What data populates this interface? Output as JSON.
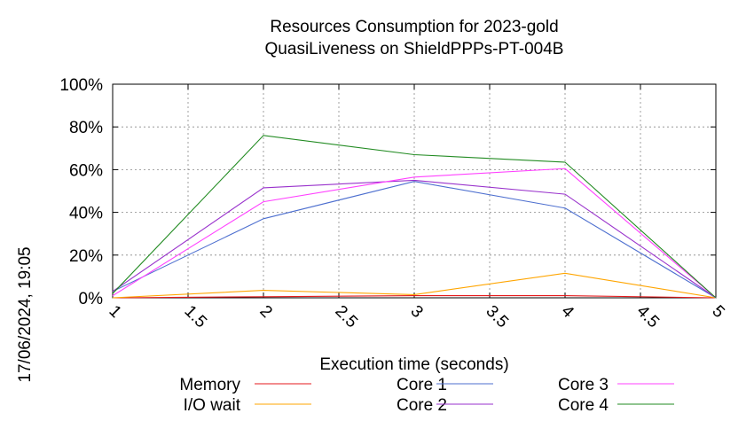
{
  "chart_data": {
    "type": "line",
    "title_line1": "Resources Consumption for 2023-gold",
    "title_line2": "QuasiLiveness on ShieldPPPs-PT-004B",
    "xlabel": "Execution time (seconds)",
    "ylabel": "",
    "timestamp": "17/06/2024, 19:05",
    "xlim": [
      1,
      5
    ],
    "ylim": [
      0,
      100
    ],
    "x_ticks": [
      1,
      1.5,
      2,
      2.5,
      3,
      3.5,
      4,
      4.5,
      5
    ],
    "x_tick_labels": [
      "1",
      "1.5",
      "2",
      "2.5",
      "3",
      "3.5",
      "4",
      "4.5",
      "5"
    ],
    "y_ticks": [
      0,
      20,
      40,
      60,
      80,
      100
    ],
    "y_tick_labels": [
      "0%",
      "20%",
      "40%",
      "60%",
      "80%",
      "100%"
    ],
    "grid": true,
    "legend_position": "bottom",
    "x": [
      1,
      2,
      3,
      4,
      5
    ],
    "series": [
      {
        "name": "Memory",
        "color": "#e41a1c",
        "values": [
          0,
          0.5,
          1,
          1,
          0
        ]
      },
      {
        "name": "I/O wait",
        "color": "#ffa500",
        "values": [
          0,
          3.5,
          1.5,
          11.5,
          0
        ]
      },
      {
        "name": "Core 1",
        "color": "#4d6fcf",
        "values": [
          3,
          37,
          54.5,
          42,
          0
        ]
      },
      {
        "name": "Core 2",
        "color": "#9932cc",
        "values": [
          3,
          51.5,
          55,
          48.5,
          0
        ]
      },
      {
        "name": "Core 3",
        "color": "#ff40ff",
        "values": [
          1,
          45,
          56.5,
          60.5,
          0
        ]
      },
      {
        "name": "Core 4",
        "color": "#228b22",
        "values": [
          2,
          76,
          67,
          63.5,
          0
        ]
      }
    ]
  }
}
